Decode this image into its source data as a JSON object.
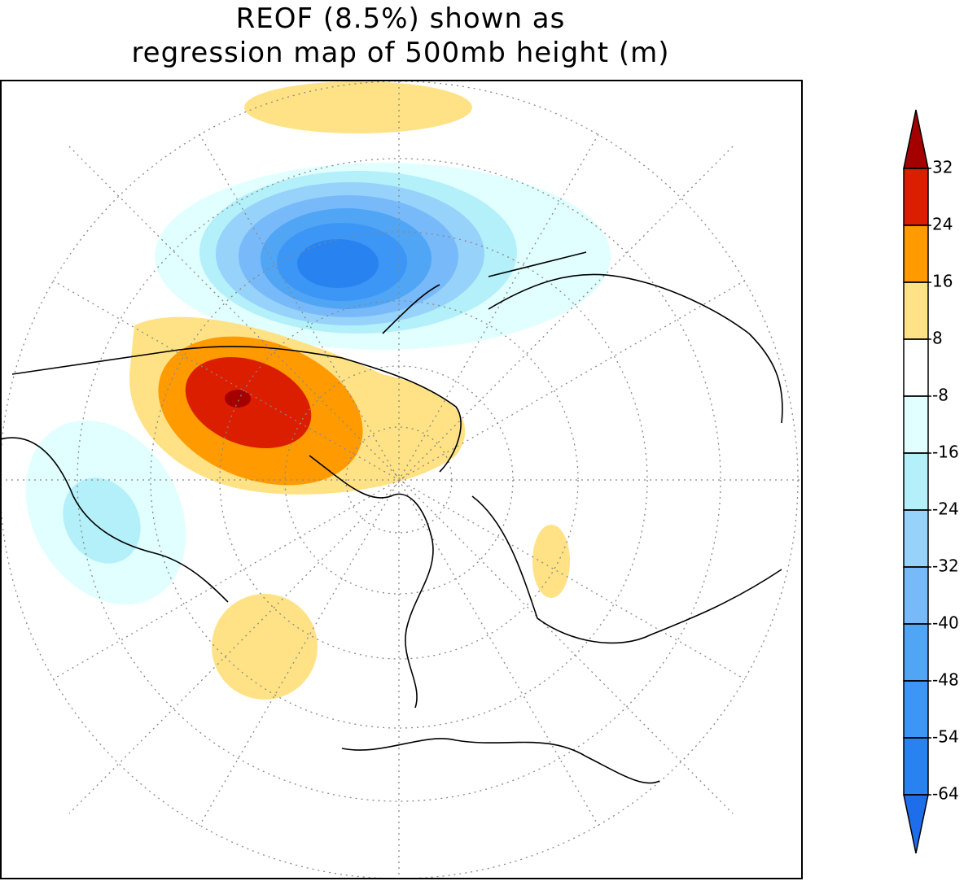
{
  "title": [
    "REOF (8.5%) shown as",
    "regression map of 500mb height (m)"
  ],
  "colorbar": {
    "levels": [
      32,
      24,
      16,
      8,
      -8,
      -16,
      -24,
      -32,
      -40,
      -48,
      -54,
      -64
    ],
    "colors": [
      "#a50000",
      "#dc1e00",
      "#ff9b00",
      "#ffe285",
      "#ffffff",
      "#e1ffff",
      "#b4f0fa",
      "#96d2fa",
      "#78b9fa",
      "#50a5f5",
      "#3c96f5",
      "#2882f0",
      "#1e6eeb"
    ]
  }
}
